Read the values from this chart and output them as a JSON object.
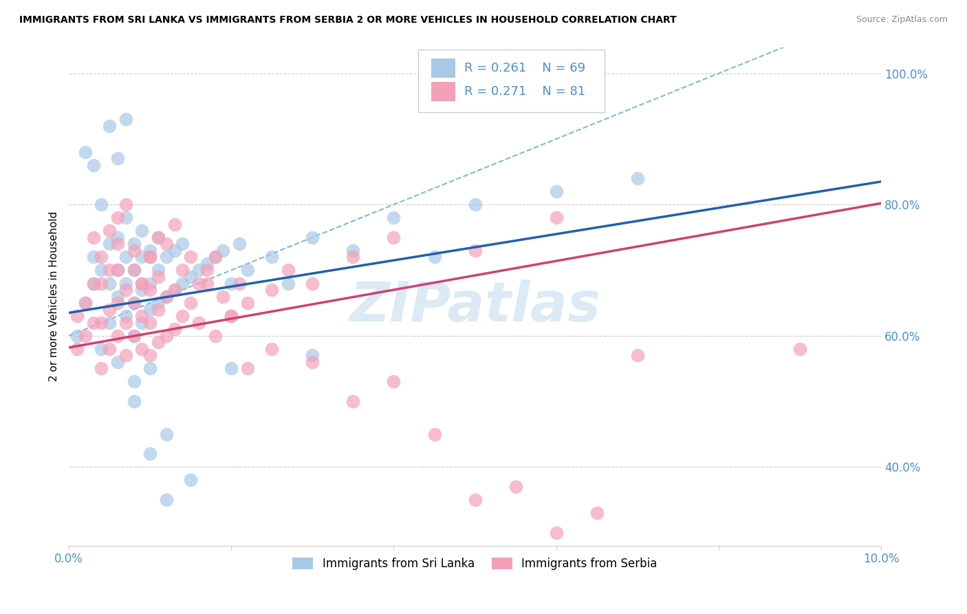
{
  "title": "IMMIGRANTS FROM SRI LANKA VS IMMIGRANTS FROM SERBIA 2 OR MORE VEHICLES IN HOUSEHOLD CORRELATION CHART",
  "source": "Source: ZipAtlas.com",
  "ylabel": "2 or more Vehicles in Household",
  "x_min": 0.0,
  "x_max": 0.1,
  "y_min": 0.28,
  "y_max": 1.04,
  "y_ticks": [
    0.4,
    0.6,
    0.8,
    1.0
  ],
  "y_tick_labels": [
    "40.0%",
    "60.0%",
    "80.0%",
    "100.0%"
  ],
  "x_ticks": [
    0.0,
    0.02,
    0.04,
    0.06,
    0.08,
    0.1
  ],
  "x_tick_labels": [
    "0.0%",
    "",
    "",
    "",
    "",
    "10.0%"
  ],
  "sri_lanka_R": 0.261,
  "sri_lanka_N": 69,
  "serbia_R": 0.271,
  "serbia_N": 81,
  "sri_lanka_color": "#a8c8e8",
  "serbia_color": "#f4a0b8",
  "sri_lanka_line_color": "#2060b0",
  "serbia_line_color": "#d04070",
  "dashed_line_color": "#80b8e0",
  "tick_color": "#4a90d9",
  "legend_label_1": "Immigrants from Sri Lanka",
  "legend_label_2": "Immigrants from Serbia",
  "watermark": "ZIPatlas",
  "sri_lanka_intercept": 0.635,
  "sri_lanka_slope": 2.0,
  "serbia_intercept": 0.582,
  "serbia_slope": 2.2,
  "sri_lanka_x": [
    0.001,
    0.002,
    0.003,
    0.003,
    0.004,
    0.004,
    0.005,
    0.005,
    0.005,
    0.006,
    0.006,
    0.006,
    0.007,
    0.007,
    0.007,
    0.007,
    0.008,
    0.008,
    0.008,
    0.008,
    0.009,
    0.009,
    0.009,
    0.009,
    0.01,
    0.01,
    0.01,
    0.011,
    0.011,
    0.011,
    0.012,
    0.012,
    0.013,
    0.013,
    0.014,
    0.014,
    0.015,
    0.016,
    0.017,
    0.018,
    0.019,
    0.02,
    0.021,
    0.022,
    0.025,
    0.027,
    0.03,
    0.035,
    0.04,
    0.045,
    0.05,
    0.06,
    0.07,
    0.002,
    0.003,
    0.004,
    0.005,
    0.006,
    0.007,
    0.008,
    0.01,
    0.012,
    0.015,
    0.01,
    0.012,
    0.008,
    0.006,
    0.02,
    0.03
  ],
  "sri_lanka_y": [
    0.6,
    0.65,
    0.68,
    0.72,
    0.58,
    0.7,
    0.62,
    0.68,
    0.74,
    0.66,
    0.7,
    0.75,
    0.63,
    0.68,
    0.72,
    0.78,
    0.6,
    0.65,
    0.7,
    0.74,
    0.62,
    0.67,
    0.72,
    0.76,
    0.64,
    0.68,
    0.73,
    0.65,
    0.7,
    0.75,
    0.66,
    0.72,
    0.67,
    0.73,
    0.68,
    0.74,
    0.69,
    0.7,
    0.71,
    0.72,
    0.73,
    0.68,
    0.74,
    0.7,
    0.72,
    0.68,
    0.75,
    0.73,
    0.78,
    0.72,
    0.8,
    0.82,
    0.84,
    0.88,
    0.86,
    0.8,
    0.92,
    0.87,
    0.93,
    0.5,
    0.55,
    0.35,
    0.38,
    0.42,
    0.45,
    0.53,
    0.56,
    0.55,
    0.57
  ],
  "serbia_x": [
    0.001,
    0.001,
    0.002,
    0.002,
    0.003,
    0.003,
    0.004,
    0.004,
    0.004,
    0.005,
    0.005,
    0.005,
    0.006,
    0.006,
    0.006,
    0.006,
    0.007,
    0.007,
    0.007,
    0.008,
    0.008,
    0.008,
    0.009,
    0.009,
    0.009,
    0.01,
    0.01,
    0.01,
    0.01,
    0.011,
    0.011,
    0.011,
    0.012,
    0.012,
    0.013,
    0.013,
    0.014,
    0.015,
    0.016,
    0.017,
    0.018,
    0.019,
    0.02,
    0.021,
    0.022,
    0.025,
    0.027,
    0.03,
    0.035,
    0.04,
    0.05,
    0.06,
    0.09,
    0.003,
    0.004,
    0.005,
    0.006,
    0.007,
    0.008,
    0.009,
    0.01,
    0.011,
    0.012,
    0.013,
    0.014,
    0.015,
    0.016,
    0.017,
    0.018,
    0.02,
    0.022,
    0.025,
    0.03,
    0.035,
    0.04,
    0.045,
    0.05,
    0.055,
    0.06,
    0.065,
    0.07
  ],
  "serbia_y": [
    0.58,
    0.63,
    0.6,
    0.65,
    0.62,
    0.68,
    0.55,
    0.62,
    0.68,
    0.58,
    0.64,
    0.7,
    0.6,
    0.65,
    0.7,
    0.74,
    0.57,
    0.62,
    0.67,
    0.6,
    0.65,
    0.7,
    0.58,
    0.63,
    0.68,
    0.57,
    0.62,
    0.67,
    0.72,
    0.59,
    0.64,
    0.69,
    0.6,
    0.66,
    0.61,
    0.67,
    0.63,
    0.65,
    0.62,
    0.68,
    0.6,
    0.66,
    0.63,
    0.68,
    0.65,
    0.67,
    0.7,
    0.68,
    0.72,
    0.75,
    0.73,
    0.78,
    0.58,
    0.75,
    0.72,
    0.76,
    0.78,
    0.8,
    0.73,
    0.68,
    0.72,
    0.75,
    0.74,
    0.77,
    0.7,
    0.72,
    0.68,
    0.7,
    0.72,
    0.63,
    0.55,
    0.58,
    0.56,
    0.5,
    0.53,
    0.45,
    0.35,
    0.37,
    0.3,
    0.33,
    0.57
  ]
}
